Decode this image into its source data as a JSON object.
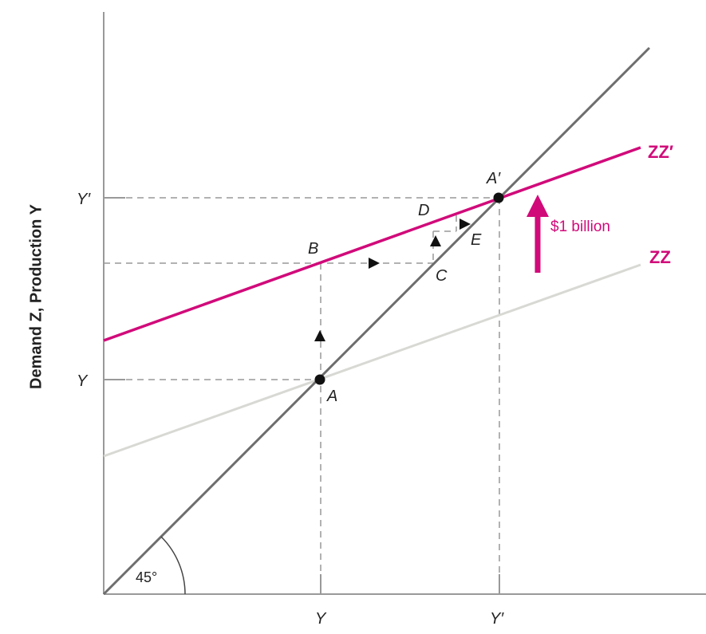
{
  "axes": {
    "y_label": "Demand Z, Production Y",
    "x_ticks": [
      "Y",
      "Y′"
    ],
    "y_ticks": [
      "Y",
      "Y′"
    ]
  },
  "angle_label": "45°",
  "curves": {
    "zz": {
      "label": "ZZ",
      "color": "#d8d8d4"
    },
    "zz_prime": {
      "label": "ZZ′",
      "color": "#d10a7a"
    },
    "line_45": {
      "color": "#6e6e6e"
    }
  },
  "points": {
    "A": "A",
    "A_prime": "A′",
    "B": "B",
    "C": "C",
    "D": "D",
    "E": "E"
  },
  "shift": {
    "label": "$1 billion",
    "color": "#d10a7a"
  }
}
